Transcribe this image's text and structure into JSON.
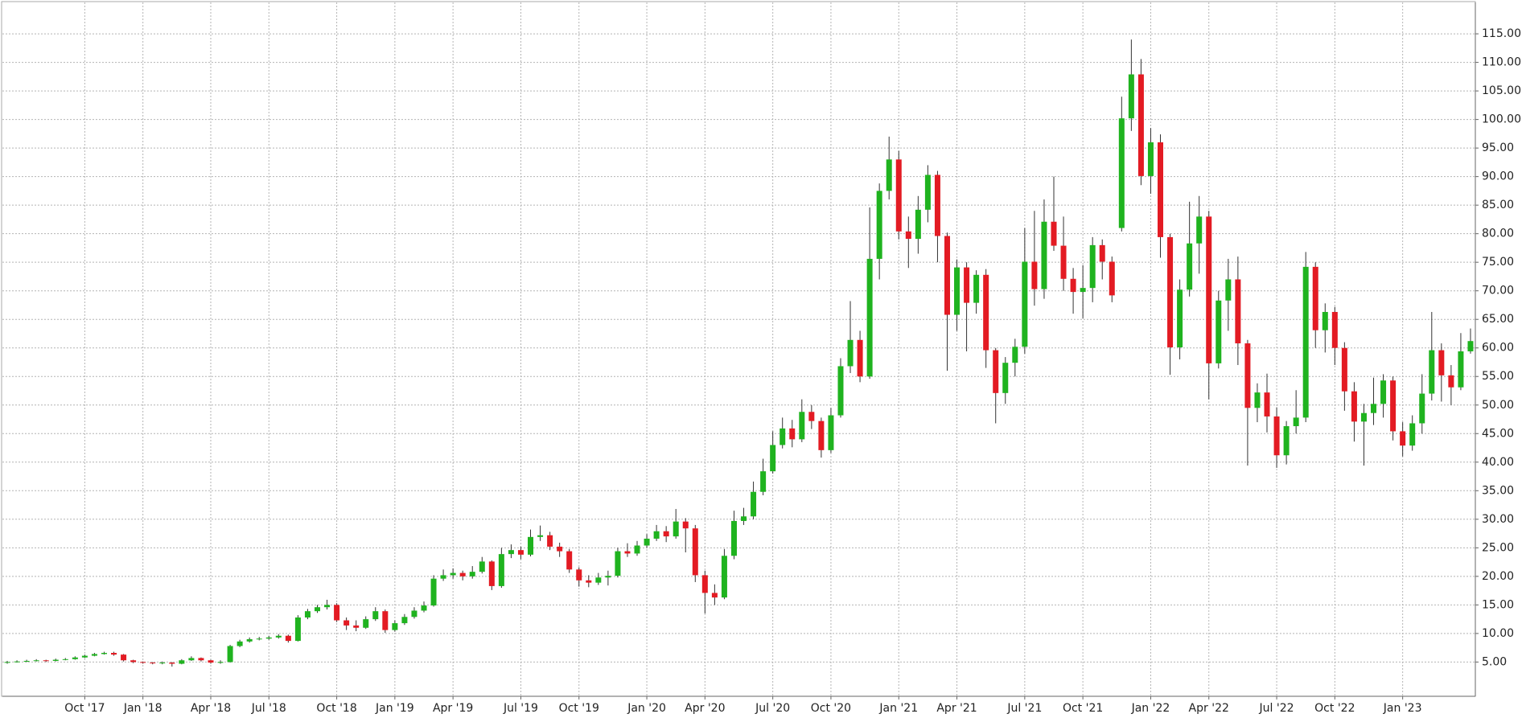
{
  "chart_data": {
    "type": "candlestick",
    "up_color": "#1fb31f",
    "down_color": "#e31b23",
    "wick_color": "#333333",
    "grid": true,
    "ylim": [
      -1,
      120.5
    ],
    "yticks": [
      {
        "value": 5,
        "label": "5.00"
      },
      {
        "value": 10,
        "label": "10.00"
      },
      {
        "value": 15,
        "label": "15.00"
      },
      {
        "value": 20,
        "label": "20.00"
      },
      {
        "value": 25,
        "label": "25.00"
      },
      {
        "value": 30,
        "label": "30.00"
      },
      {
        "value": 35,
        "label": "35.00"
      },
      {
        "value": 40,
        "label": "40.00"
      },
      {
        "value": 45,
        "label": "45.00"
      },
      {
        "value": 50,
        "label": "50.00"
      },
      {
        "value": 55,
        "label": "55.00"
      },
      {
        "value": 60,
        "label": "60.00"
      },
      {
        "value": 65,
        "label": "65.00"
      },
      {
        "value": 70,
        "label": "70.00"
      },
      {
        "value": 75,
        "label": "75.00"
      },
      {
        "value": 80,
        "label": "80.00"
      },
      {
        "value": 85,
        "label": "85.00"
      },
      {
        "value": 90,
        "label": "90.00"
      },
      {
        "value": 95,
        "label": "95.00"
      },
      {
        "value": 100,
        "label": "100.00"
      },
      {
        "value": 105,
        "label": "105.00"
      },
      {
        "value": 110,
        "label": "110.00"
      },
      {
        "value": 115,
        "label": "115.00"
      }
    ],
    "categories": [
      null,
      null,
      null,
      null,
      null,
      null,
      null,
      null,
      "Oct '17",
      null,
      null,
      null,
      null,
      null,
      "Jan '18",
      null,
      null,
      null,
      null,
      null,
      null,
      "Apr '18",
      null,
      null,
      null,
      null,
      null,
      "Jul '18",
      null,
      null,
      null,
      null,
      null,
      null,
      "Oct '18",
      null,
      null,
      null,
      null,
      null,
      "Jan '19",
      null,
      null,
      null,
      null,
      null,
      "Apr '19",
      null,
      null,
      null,
      null,
      null,
      null,
      "Jul '19",
      null,
      null,
      null,
      null,
      null,
      "Oct '19",
      null,
      null,
      null,
      null,
      null,
      null,
      "Jan '20",
      null,
      null,
      null,
      null,
      null,
      "Apr '20",
      null,
      null,
      null,
      null,
      null,
      null,
      "Jul '20",
      null,
      null,
      null,
      null,
      null,
      "Oct '20",
      null,
      null,
      null,
      null,
      null,
      null,
      "Jan '21",
      null,
      null,
      null,
      null,
      null,
      "Apr '21",
      null,
      null,
      null,
      null,
      null,
      null,
      "Jul '21",
      null,
      null,
      null,
      null,
      null,
      "Oct '21",
      null,
      null,
      null,
      null,
      null,
      null,
      "Jan '22",
      null,
      null,
      null,
      null,
      null,
      "Apr '22",
      null,
      null,
      null,
      null,
      null,
      null,
      "Jul '22",
      null,
      null,
      null,
      null,
      null,
      "Oct '22",
      null,
      null,
      null,
      null,
      null,
      null,
      "Jan '23",
      null,
      null,
      null,
      null,
      null,
      null,
      null
    ],
    "open": [
      4.9,
      5.0,
      5.1,
      5.2,
      5.3,
      5.2,
      5.4,
      5.5,
      5.8,
      6.1,
      6.4,
      6.6,
      6.3,
      5.3,
      5.0,
      4.9,
      4.8,
      4.9,
      4.7,
      5.3,
      5.7,
      5.3,
      4.9,
      5.0,
      7.8,
      8.6,
      9.0,
      9.1,
      9.3,
      9.6,
      8.7,
      12.8,
      13.9,
      14.6,
      15.0,
      12.3,
      11.4,
      11.0,
      12.5,
      13.9,
      10.6,
      11.8,
      12.9,
      14.0,
      14.9,
      19.6,
      20.2,
      20.6,
      20.0,
      20.8,
      22.6,
      18.3,
      23.9,
      24.6,
      23.8,
      26.9,
      27.2,
      25.2,
      24.4,
      21.2,
      19.3,
      18.9,
      19.8,
      20.1,
      24.4,
      24.0,
      25.4,
      26.6,
      27.9,
      27.0,
      29.6,
      28.4,
      20.2,
      17.1,
      16.3,
      23.6,
      29.7,
      30.5,
      34.8,
      38.4,
      43.0,
      45.9,
      44.0,
      48.8,
      47.2,
      42.1,
      48.2,
      56.8,
      61.4,
      55.0,
      75.6,
      87.5,
      93.0,
      80.4,
      79.1,
      84.2,
      90.3,
      79.6,
      65.8,
      74.1,
      67.9,
      72.8,
      59.6,
      52.1,
      57.4,
      60.2,
      75.1,
      70.3,
      82.1,
      77.9,
      72.1,
      69.8,
      70.5,
      78.0,
      75.1,
      81.0,
      100.2,
      107.9,
      90.1,
      96.0,
      79.4,
      60.1,
      70.2,
      78.3,
      83.0,
      57.3,
      68.3,
      72.0,
      60.8,
      49.5,
      52.2,
      48.0,
      41.2,
      46.3,
      47.8,
      74.2,
      63.1,
      66.3,
      60.0,
      52.4,
      47.1,
      48.6,
      50.2,
      54.3,
      45.4,
      42.9,
      46.8,
      52.0,
      59.6,
      55.2,
      53.1,
      59.4
    ],
    "high": [
      5.2,
      5.3,
      5.4,
      5.5,
      5.4,
      5.6,
      5.7,
      6.0,
      6.3,
      6.6,
      6.8,
      6.8,
      6.4,
      5.4,
      5.1,
      5.0,
      5.1,
      5.0,
      5.5,
      6.0,
      5.8,
      5.4,
      5.3,
      8.0,
      8.9,
      9.3,
      9.4,
      9.6,
      9.9,
      9.8,
      13.2,
      14.3,
      15.0,
      15.9,
      15.3,
      12.8,
      12.3,
      13.0,
      14.6,
      14.2,
      12.3,
      13.4,
      14.6,
      15.6,
      20.2,
      21.2,
      21.4,
      21.0,
      21.8,
      23.4,
      22.8,
      25.0,
      25.6,
      25.2,
      28.2,
      28.9,
      27.8,
      25.9,
      24.8,
      21.6,
      20.2,
      20.6,
      21.0,
      25.0,
      25.8,
      26.2,
      27.4,
      29.0,
      28.8,
      31.8,
      30.2,
      29.0,
      21.0,
      18.6,
      24.8,
      31.5,
      32.0,
      36.6,
      40.6,
      45.4,
      47.8,
      47.4,
      51.0,
      50.0,
      47.8,
      49.5,
      58.2,
      68.2,
      63.0,
      84.6,
      88.8,
      97.0,
      94.5,
      83.0,
      86.6,
      92.0,
      91.0,
      80.2,
      75.5,
      75.0,
      73.6,
      73.8,
      60.0,
      58.4,
      61.6,
      81.0,
      84.0,
      86.0,
      90.0,
      83.0,
      74.0,
      74.5,
      79.4,
      79.0,
      76.0,
      104.0,
      114.0,
      110.6,
      98.5,
      97.4,
      80.0,
      72.0,
      85.6,
      86.6,
      84.0,
      70.0,
      75.6,
      76.0,
      61.4,
      53.8,
      55.5,
      49.6,
      47.2,
      52.6,
      76.8,
      75.0,
      67.8,
      67.2,
      61.0,
      54.0,
      50.2,
      54.8,
      55.4,
      55.0,
      47.0,
      48.2,
      55.4,
      66.3,
      60.8,
      57.0,
      62.6,
      63.4
    ],
    "low": [
      4.7,
      4.9,
      5.0,
      5.1,
      5.0,
      5.1,
      5.3,
      5.4,
      5.7,
      6.0,
      6.3,
      6.1,
      5.1,
      4.8,
      4.7,
      4.6,
      4.6,
      4.2,
      4.6,
      5.2,
      5.1,
      4.7,
      4.7,
      4.9,
      7.6,
      8.4,
      8.8,
      8.9,
      9.1,
      8.4,
      8.6,
      12.5,
      13.6,
      14.2,
      12.0,
      10.6,
      10.4,
      10.8,
      12.2,
      10.1,
      10.3,
      11.5,
      12.6,
      13.7,
      14.7,
      19.2,
      19.6,
      19.3,
      19.6,
      20.5,
      17.6,
      18.0,
      23.2,
      23.0,
      23.5,
      26.2,
      24.6,
      23.4,
      20.6,
      18.2,
      18.1,
      18.5,
      18.4,
      19.8,
      23.4,
      23.6,
      25.0,
      26.2,
      26.0,
      26.6,
      24.2,
      19.0,
      13.5,
      15.0,
      16.0,
      23.0,
      29.0,
      30.0,
      34.2,
      38.0,
      42.4,
      42.6,
      43.5,
      45.8,
      40.8,
      41.6,
      47.8,
      55.6,
      54.0,
      54.6,
      72.0,
      86.0,
      79.0,
      74.0,
      76.5,
      82.0,
      75.0,
      56.0,
      63.0,
      59.4,
      66.0,
      56.5,
      46.8,
      50.2,
      55.0,
      59.0,
      67.4,
      68.6,
      77.0,
      70.0,
      66.0,
      65.2,
      68.0,
      72.0,
      68.0,
      80.4,
      98.0,
      88.5,
      87.0,
      75.8,
      55.3,
      58.0,
      69.0,
      73.0,
      51.0,
      56.4,
      63.0,
      57.0,
      39.4,
      47.0,
      45.2,
      39.0,
      39.6,
      45.0,
      47.0,
      60.0,
      59.2,
      57.0,
      49.0,
      43.6,
      39.4,
      46.5,
      47.8,
      43.8,
      41.0,
      42.0,
      45.0,
      50.8,
      50.6,
      50.0,
      52.6,
      59.0
    ],
    "close": [
      5.0,
      5.1,
      5.2,
      5.3,
      5.2,
      5.4,
      5.5,
      5.8,
      6.1,
      6.4,
      6.6,
      6.3,
      5.3,
      5.0,
      4.9,
      4.8,
      4.9,
      4.7,
      5.3,
      5.7,
      5.3,
      4.9,
      5.0,
      7.8,
      8.6,
      9.0,
      9.1,
      9.3,
      9.6,
      8.7,
      12.8,
      13.9,
      14.6,
      15.0,
      12.3,
      11.4,
      11.0,
      12.5,
      13.9,
      10.6,
      11.8,
      12.9,
      14.0,
      14.9,
      19.6,
      20.2,
      20.6,
      20.0,
      20.8,
      22.6,
      18.3,
      23.9,
      24.6,
      23.8,
      26.9,
      27.2,
      25.2,
      24.4,
      21.2,
      19.3,
      18.9,
      19.8,
      20.1,
      24.4,
      24.0,
      25.4,
      26.6,
      27.9,
      27.0,
      29.6,
      28.4,
      20.2,
      17.1,
      16.3,
      23.6,
      29.7,
      30.5,
      34.8,
      38.4,
      43.0,
      45.9,
      44.0,
      48.8,
      47.2,
      42.1,
      48.2,
      56.8,
      61.4,
      55.0,
      75.6,
      87.5,
      93.0,
      80.4,
      79.1,
      84.2,
      90.3,
      79.6,
      65.8,
      74.1,
      67.9,
      72.8,
      59.6,
      52.1,
      57.4,
      60.2,
      75.1,
      70.3,
      82.1,
      77.9,
      72.1,
      69.8,
      70.5,
      78.0,
      75.1,
      69.2,
      100.2,
      107.9,
      90.1,
      96.0,
      79.4,
      60.1,
      70.2,
      78.3,
      83.0,
      57.3,
      68.3,
      72.0,
      60.8,
      49.5,
      52.2,
      48.0,
      41.2,
      46.3,
      47.8,
      74.2,
      63.1,
      66.3,
      60.0,
      52.4,
      47.1,
      48.6,
      50.2,
      54.3,
      45.4,
      42.9,
      46.8,
      52.0,
      59.6,
      55.2,
      53.1,
      59.4,
      61.2
    ]
  }
}
